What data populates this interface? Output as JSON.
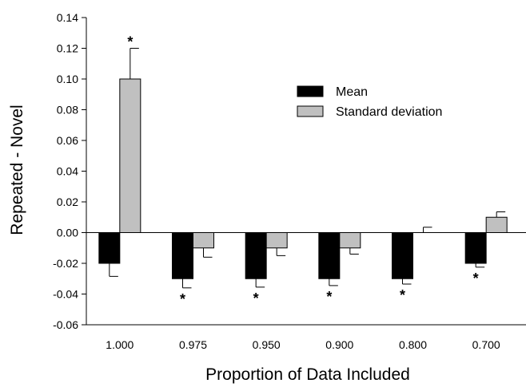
{
  "chart_data": {
    "type": "bar",
    "xlabel": "Proportion of Data Included",
    "ylabel": "Repeated - Novel",
    "ylim": [
      -0.06,
      0.14
    ],
    "yticks": [
      "-0.06",
      "-0.04",
      "-0.02",
      "0.00",
      "0.02",
      "0.04",
      "0.06",
      "0.08",
      "0.10",
      "0.12",
      "0.14"
    ],
    "categories": [
      "1.000",
      "0.975",
      "0.950",
      "0.900",
      "0.800",
      "0.700"
    ],
    "grid": false,
    "legend_position": "top-right",
    "series": [
      {
        "name": "Mean",
        "color": "#000000",
        "values": [
          -0.02,
          -0.03,
          -0.03,
          -0.03,
          -0.03,
          -0.02
        ],
        "errors": [
          0.0085,
          0.006,
          0.0055,
          0.0045,
          0.0035,
          0.0025
        ],
        "significance": [
          "",
          "*",
          "*",
          "*",
          "*",
          "*"
        ]
      },
      {
        "name": "Standard deviation",
        "color": "#c0c0c0",
        "values": [
          0.1,
          -0.01,
          -0.01,
          -0.01,
          0.0,
          0.01
        ],
        "errors": [
          0.02,
          0.006,
          0.005,
          0.004,
          0.0035,
          0.0035
        ],
        "significance": [
          "*",
          "",
          "",
          "",
          "",
          ""
        ]
      }
    ]
  }
}
